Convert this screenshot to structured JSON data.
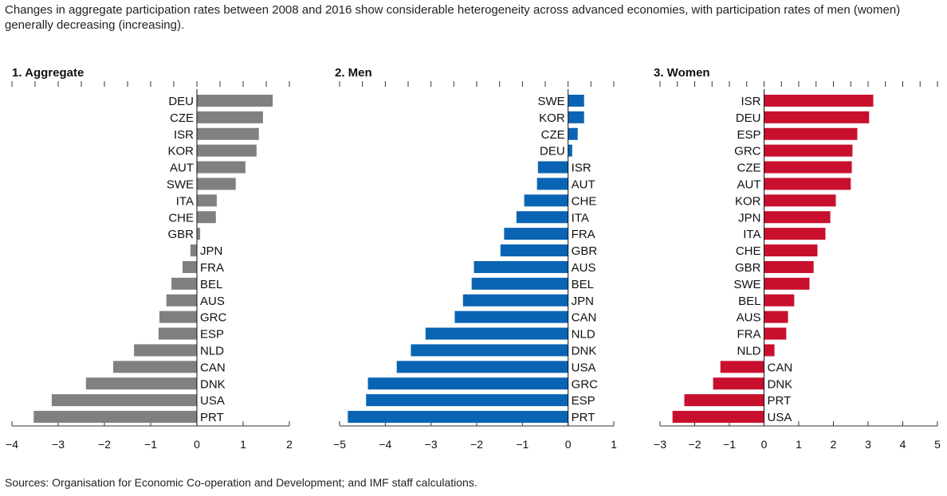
{
  "caption": "Changes in aggregate participation rates between 2008 and 2016 show considerable heterogeneity across advanced economies, with participation rates of men (women) generally decreasing (increasing).",
  "source": "Sources: Organisation for Economic Co-operation and Development; and IMF staff calculations.",
  "chart_data": [
    {
      "type": "bar",
      "orientation": "horizontal",
      "title": "1. Aggregate",
      "color": "#808080",
      "xlim": [
        -4,
        2
      ],
      "xticks": [
        -4,
        -3,
        -2,
        -1,
        0,
        1,
        2
      ],
      "categories": [
        "DEU",
        "CZE",
        "ISR",
        "KOR",
        "AUT",
        "SWE",
        "ITA",
        "CHE",
        "GBR",
        "JPN",
        "FRA",
        "BEL",
        "AUS",
        "GRC",
        "ESP",
        "NLD",
        "CAN",
        "DNK",
        "USA",
        "PRT"
      ],
      "values": [
        1.64,
        1.43,
        1.34,
        1.29,
        1.05,
        0.84,
        0.43,
        0.41,
        0.07,
        -0.14,
        -0.31,
        -0.55,
        -0.66,
        -0.81,
        -0.83,
        -1.36,
        -1.81,
        -2.4,
        -3.14,
        -3.53
      ]
    },
    {
      "type": "bar",
      "orientation": "horizontal",
      "title": "2. Men",
      "color": "#0A64B4",
      "xlim": [
        -5,
        1
      ],
      "xticks": [
        -5,
        -4,
        -3,
        -2,
        -1,
        0,
        1
      ],
      "categories": [
        "SWE",
        "KOR",
        "CZE",
        "DEU",
        "ISR",
        "AUT",
        "CHE",
        "ITA",
        "FRA",
        "GBR",
        "AUS",
        "BEL",
        "JPN",
        "CAN",
        "NLD",
        "DNK",
        "USA",
        "GRC",
        "ESP",
        "PRT"
      ],
      "values": [
        0.35,
        0.35,
        0.21,
        0.09,
        -0.66,
        -0.68,
        -0.96,
        -1.13,
        -1.4,
        -1.48,
        -2.06,
        -2.11,
        -2.3,
        -2.48,
        -3.12,
        -3.44,
        -3.75,
        -4.38,
        -4.42,
        -4.82
      ]
    },
    {
      "type": "bar",
      "orientation": "horizontal",
      "title": "3. Women",
      "color": "#C8102E",
      "xlim": [
        -3,
        5
      ],
      "xticks": [
        -3,
        -2,
        -1,
        0,
        1,
        2,
        3,
        4,
        5
      ],
      "categories": [
        "ISR",
        "DEU",
        "ESP",
        "GRC",
        "CZE",
        "AUT",
        "KOR",
        "JPN",
        "ITA",
        "CHE",
        "GBR",
        "SWE",
        "BEL",
        "AUS",
        "FRA",
        "NLD",
        "CAN",
        "DNK",
        "PRT",
        "USA"
      ],
      "values": [
        3.15,
        3.03,
        2.69,
        2.55,
        2.53,
        2.5,
        2.07,
        1.91,
        1.77,
        1.54,
        1.43,
        1.31,
        0.87,
        0.69,
        0.64,
        0.3,
        -1.26,
        -1.47,
        -2.3,
        -2.64
      ]
    }
  ]
}
